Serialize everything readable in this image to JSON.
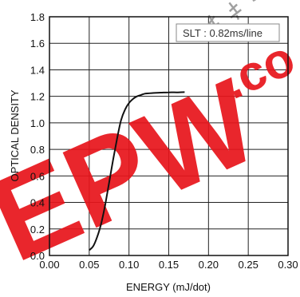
{
  "chart_data": {
    "type": "line",
    "xlabel": "ENERGY (mJ/dot)",
    "ylabel": "OPTICAL DENSITY",
    "xlim": [
      0.0,
      0.3
    ],
    "ylim": [
      0.0,
      1.8
    ],
    "xticks": [
      "0.00",
      "0.05",
      "0.10",
      "0.15",
      "0.20",
      "0.25",
      "0.30"
    ],
    "yticks": [
      "0.0",
      "0.2",
      "0.4",
      "0.6",
      "0.8",
      "1.0",
      "1.2",
      "1.4",
      "1.6",
      "1.8"
    ],
    "grid": true,
    "legend_placement": "top-right",
    "annotation": "SLT : 0.82ms/line",
    "series": [
      {
        "x": [
          0.05,
          0.055,
          0.06,
          0.065,
          0.07,
          0.075,
          0.08,
          0.085,
          0.09,
          0.095,
          0.1,
          0.105,
          0.11,
          0.115,
          0.12,
          0.13,
          0.14,
          0.15,
          0.16,
          0.17
        ],
        "y": [
          0.04,
          0.07,
          0.14,
          0.24,
          0.38,
          0.55,
          0.72,
          0.88,
          1.02,
          1.1,
          1.15,
          1.18,
          1.2,
          1.21,
          1.22,
          1.225,
          1.228,
          1.23,
          1.23,
          1.232
        ],
        "color": "#111111"
      }
    ]
  },
  "watermark": {
    "text": "EPW",
    "suffix": ".co",
    "color": "#e8141b"
  }
}
